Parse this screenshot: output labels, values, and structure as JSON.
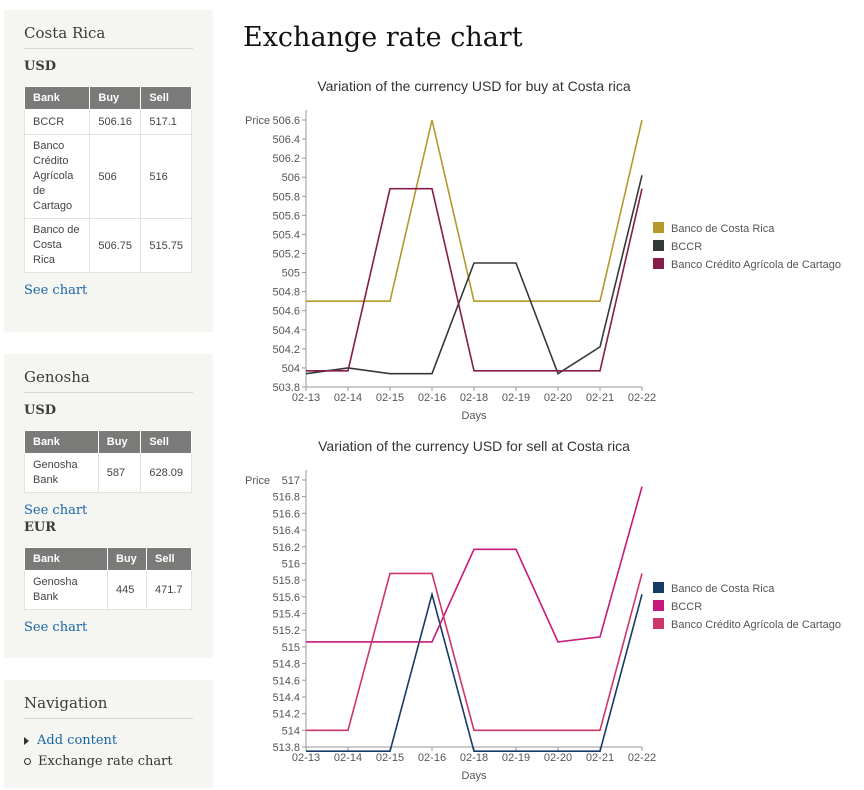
{
  "page": {
    "title": "Exchange rate chart"
  },
  "sidebar": {
    "blocks": [
      {
        "title": "Costa Rica",
        "groups": [
          {
            "currency": "USD",
            "headers": [
              "Bank",
              "Buy",
              "Sell"
            ],
            "rows": [
              [
                "BCCR",
                "506.16",
                "517.1"
              ],
              [
                "Banco Crédito Agrícola de Cartago",
                "506",
                "516"
              ],
              [
                "Banco de Costa Rica",
                "506.75",
                "515.75"
              ]
            ],
            "link": "See chart"
          }
        ]
      },
      {
        "title": "Genosha",
        "groups": [
          {
            "currency": "USD",
            "headers": [
              "Bank",
              "Buy",
              "Sell"
            ],
            "rows": [
              [
                "Genosha Bank",
                "587",
                "628.09"
              ]
            ],
            "link": "See chart"
          },
          {
            "currency": "EUR",
            "headers": [
              "Bank",
              "Buy",
              "Sell"
            ],
            "rows": [
              [
                "Genosha Bank",
                "445",
                "471.7"
              ]
            ],
            "link": "See chart"
          }
        ]
      }
    ],
    "navigation": {
      "title": "Navigation",
      "items": [
        {
          "label": "Add content",
          "link": true
        },
        {
          "label": "Exchange rate chart",
          "link": false
        }
      ]
    }
  },
  "chart_data": [
    {
      "type": "line",
      "title": "Variation of the currency USD for buy at Costa rica",
      "xlabel": "Days",
      "ylabel": "Price",
      "categories": [
        "02-13",
        "02-14",
        "02-15",
        "02-16",
        "02-18",
        "02-19",
        "02-20",
        "02-21",
        "02-22"
      ],
      "ylim": [
        503.8,
        506.6
      ],
      "yticks": [
        503.8,
        504,
        504.2,
        504.4,
        504.6,
        504.8,
        505,
        505.2,
        505.4,
        505.6,
        505.8,
        506,
        506.2,
        506.4,
        506.6
      ],
      "legend_position": "right",
      "series": [
        {
          "name": "Banco de Costa Rica",
          "color": "#b5992a",
          "values": [
            504.7,
            504.7,
            504.7,
            506.6,
            504.7,
            504.7,
            504.7,
            504.7,
            506.6
          ]
        },
        {
          "name": "BCCR",
          "color": "#343a38",
          "values": [
            503.94,
            504.0,
            503.94,
            503.94,
            505.1,
            505.1,
            503.94,
            504.22,
            506.02
          ]
        },
        {
          "name": "Banco Crédito Agrícola de Cartago",
          "color": "#861c4a",
          "values": [
            503.97,
            503.97,
            505.88,
            505.88,
            503.97,
            503.97,
            503.97,
            503.97,
            505.88
          ]
        }
      ]
    },
    {
      "type": "line",
      "title": "Variation of the currency USD for sell at Costa rica",
      "xlabel": "Days",
      "ylabel": "Price",
      "categories": [
        "02-13",
        "02-14",
        "02-15",
        "02-16",
        "02-18",
        "02-19",
        "02-20",
        "02-21",
        "02-22"
      ],
      "ylim": [
        513.8,
        517.0
      ],
      "yticks": [
        513.8,
        514,
        514.2,
        514.4,
        514.6,
        514.8,
        515,
        515.2,
        515.4,
        515.6,
        515.8,
        516,
        516.2,
        516.4,
        516.6,
        516.8,
        517
      ],
      "legend_position": "right",
      "series": [
        {
          "name": "Banco de Costa Rica",
          "color": "#153a66",
          "values": [
            513.75,
            513.75,
            513.75,
            515.63,
            513.75,
            513.75,
            513.75,
            513.75,
            515.63
          ]
        },
        {
          "name": "BCCR",
          "color": "#c7187c",
          "values": [
            515.06,
            515.06,
            515.06,
            515.06,
            516.17,
            516.17,
            515.06,
            515.12,
            516.92
          ]
        },
        {
          "name": "Banco Crédito Agrícola de Cartago",
          "color": "#cf3668",
          "values": [
            514.0,
            514.0,
            515.88,
            515.88,
            514.0,
            514.0,
            514.0,
            514.0,
            515.88
          ]
        }
      ]
    }
  ]
}
